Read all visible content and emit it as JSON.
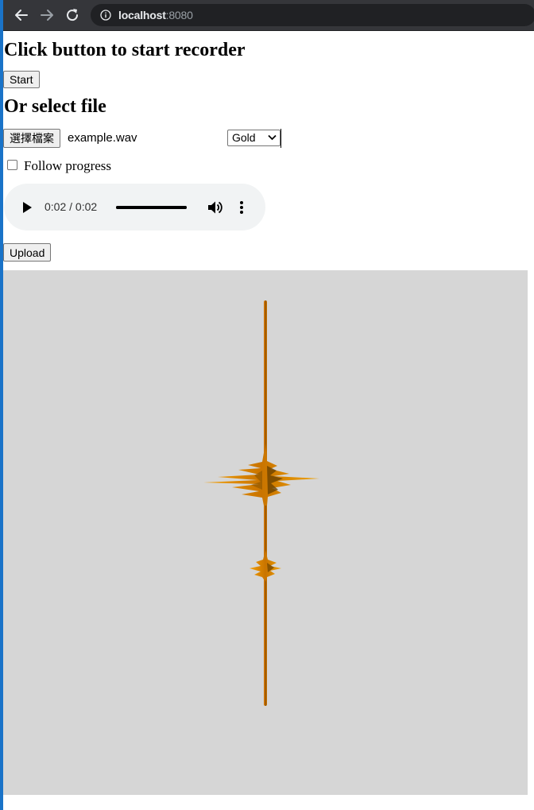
{
  "browser": {
    "url_host": "localhost",
    "url_port": ":8080"
  },
  "page": {
    "heading_record": "Click button to start recorder",
    "start_button": "Start",
    "heading_file": "Or select file",
    "choose_file_button": "選擇檔案",
    "file_name": "example.wav",
    "color_select": {
      "value": "Gold"
    },
    "follow_progress_label": "Follow progress",
    "follow_progress_checked": false,
    "audio": {
      "time": "0:02 / 0:02",
      "progress_fraction": 1.0
    },
    "upload_button": "Upload"
  },
  "colors": {
    "canvas_background": "#d6d6d6",
    "waveform_gold": "#e08a00",
    "waveform_dark": "#7a4a00",
    "audio_bg": "#f1f3f4"
  }
}
